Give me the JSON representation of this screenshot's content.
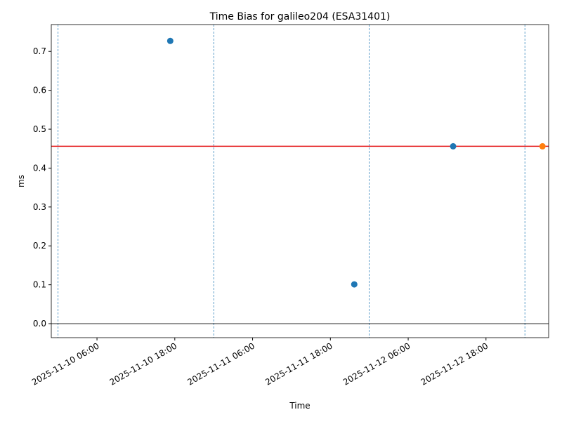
{
  "chart_data": {
    "type": "scatter",
    "title": "Time Bias for galileo204 (ESA31401)",
    "x_label": "Time",
    "y_label": "ms",
    "xlim": [
      "2025-11-09 22:57",
      "2025-11-13 03:40"
    ],
    "xticks": [
      "2025-11-10 06:00",
      "2025-11-10 18:00",
      "2025-11-11 06:00",
      "2025-11-11 18:00",
      "2025-11-12 06:00",
      "2025-11-12 18:00"
    ],
    "ylim": [
      -0.036,
      0.769
    ],
    "yticks": [
      {
        "value": 0,
        "label": "0.0"
      },
      0.1,
      0.2,
      0.3,
      0.4,
      0.5,
      0.6,
      0.7
    ],
    "series": [
      {
        "color": "#1f77b4",
        "x": [
          "2025-11-10 17:18",
          "2025-11-11 21:41",
          "2025-11-12 12:56"
        ],
        "values": [
          0.727,
          0.101,
          0.456
        ]
      },
      {
        "color": "#ff7f0e",
        "x": [
          "2025-11-13 02:43"
        ],
        "values": [
          0.456
        ]
      }
    ],
    "hlines": [
      {
        "value": 0.456,
        "color": "#e41a1c"
      },
      {
        "value": 0,
        "color": "#000000"
      }
    ],
    "vlines": {
      "color": "#1f77b4",
      "x": [
        "2025-11-10 00:00",
        "2025-11-11 00:00",
        "2025-11-12 00:00",
        "2025-11-13 00:00"
      ]
    }
  }
}
